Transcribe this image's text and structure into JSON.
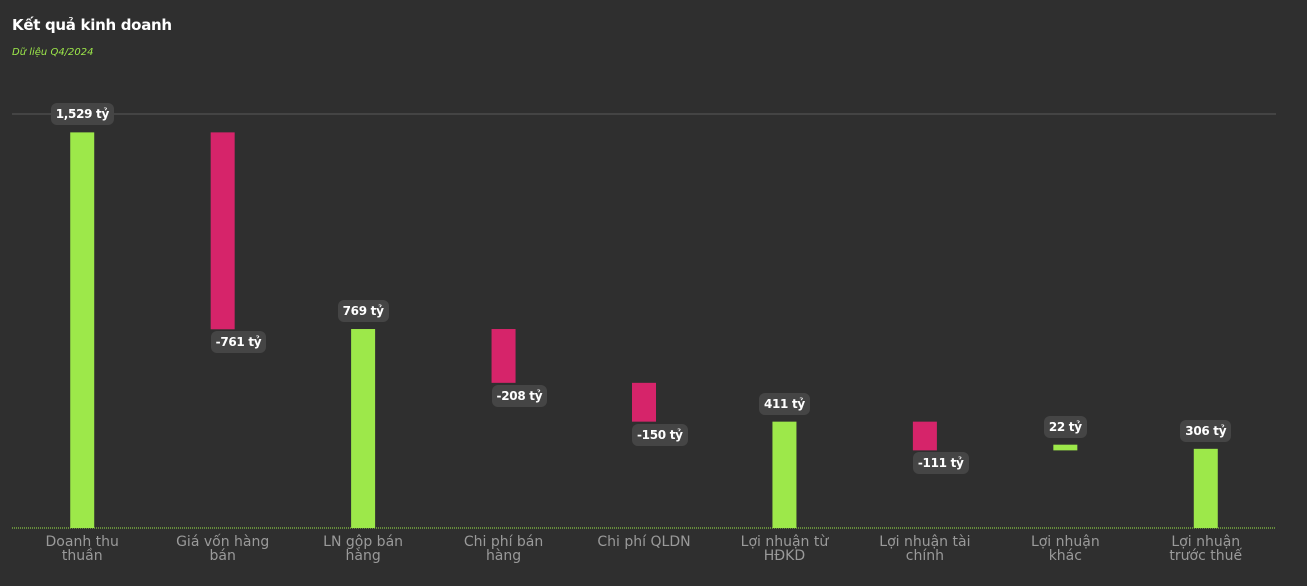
{
  "chart_data": {
    "type": "waterfall",
    "title": "Kết quả kinh doanh",
    "subtitle": "Dữ liệu Q4/2024",
    "categories": [
      "Doanh thu thuần",
      "Giá vốn hàng bán",
      "LN gộp bán hàng",
      "Chi phí bán hàng",
      "Chi phí QLDN",
      "Lợi nhuận từ HĐKD",
      "Lợi nhuận tài chính",
      "Lợi nhuận khác",
      "Lợi nhuận trước thuế"
    ],
    "values": [
      1529,
      -761,
      769,
      -208,
      -150,
      411,
      -111,
      22,
      306
    ],
    "value_labels": [
      "1,529 tỷ",
      "-761 tỷ",
      "769 tỷ",
      "-208 tỷ",
      "-150 tỷ",
      "411 tỷ",
      "-111 tỷ",
      "22 tỷ",
      "306 tỷ"
    ],
    "measure": [
      "total",
      "relative",
      "total",
      "relative",
      "relative",
      "total",
      "relative",
      "relative",
      "total"
    ],
    "positive_color": "#9de84a",
    "negative_color": "#d6246a",
    "ylim": [
      0,
      1600
    ]
  }
}
